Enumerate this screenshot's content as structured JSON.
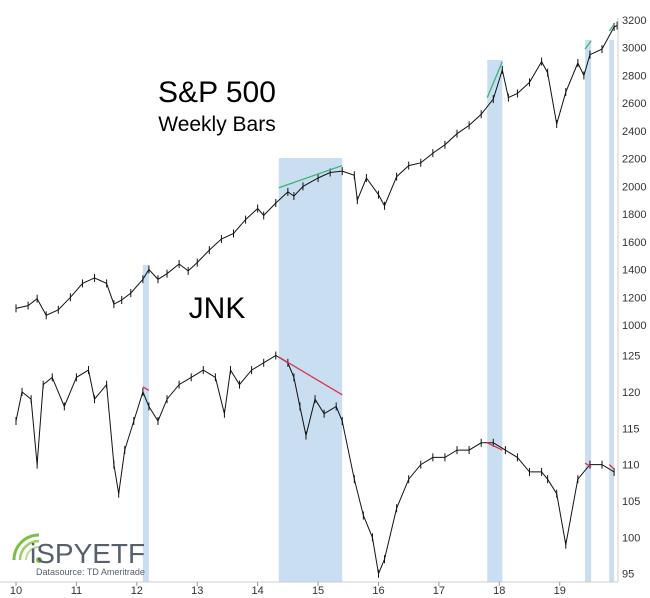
{
  "chart_data": [
    {
      "type": "line",
      "title": "S&P 500",
      "subtitle": "Weekly Bars",
      "x_tick_labels": [
        "10",
        "11",
        "12",
        "13",
        "14",
        "15",
        "16",
        "17",
        "18",
        "19"
      ],
      "y_ticks": [
        1000,
        1200,
        1400,
        1600,
        1800,
        2000,
        2200,
        2400,
        2600,
        2800,
        3000,
        3200
      ],
      "ylim": [
        1000,
        3200
      ],
      "xlim": [
        2010.0,
        2019.95
      ],
      "series": [
        {
          "x": [
            2010.0,
            2010.2,
            2010.35,
            2010.5,
            2010.7,
            2010.9,
            2011.1,
            2011.3,
            2011.5,
            2011.62,
            2011.75,
            2011.9,
            2012.1,
            2012.2,
            2012.35,
            2012.5,
            2012.7,
            2012.85,
            2013.0,
            2013.2,
            2013.4,
            2013.6,
            2013.8,
            2014.0,
            2014.1,
            2014.3,
            2014.5,
            2014.6,
            2014.75,
            2015.0,
            2015.2,
            2015.4,
            2015.6,
            2015.65,
            2015.8,
            2016.0,
            2016.1,
            2016.3,
            2016.5,
            2016.7,
            2016.9,
            2017.1,
            2017.3,
            2017.5,
            2017.7,
            2017.9,
            2018.05,
            2018.15,
            2018.3,
            2018.5,
            2018.7,
            2018.8,
            2018.95,
            2019.1,
            2019.3,
            2019.4,
            2019.5,
            2019.7,
            2019.9,
            2019.95
          ],
          "values": [
            1120,
            1140,
            1190,
            1070,
            1110,
            1200,
            1300,
            1340,
            1300,
            1150,
            1180,
            1230,
            1330,
            1400,
            1330,
            1370,
            1440,
            1390,
            1450,
            1540,
            1620,
            1660,
            1760,
            1840,
            1790,
            1880,
            1960,
            1930,
            2000,
            2060,
            2100,
            2110,
            2080,
            1900,
            2060,
            1940,
            1860,
            2070,
            2150,
            2170,
            2240,
            2300,
            2380,
            2440,
            2520,
            2630,
            2840,
            2640,
            2670,
            2750,
            2900,
            2820,
            2450,
            2680,
            2890,
            2800,
            2950,
            2990,
            3150,
            3160
          ]
        }
      ]
    },
    {
      "type": "line",
      "title": "JNK",
      "y_ticks": [
        95,
        100,
        105,
        110,
        115,
        120,
        125
      ],
      "ylim": [
        94,
        127
      ],
      "xlim": [
        2010.0,
        2019.95
      ],
      "series": [
        {
          "x": [
            2010.0,
            2010.1,
            2010.25,
            2010.35,
            2010.45,
            2010.6,
            2010.8,
            2011.0,
            2011.2,
            2011.3,
            2011.5,
            2011.62,
            2011.7,
            2011.8,
            2011.95,
            2012.1,
            2012.2,
            2012.35,
            2012.5,
            2012.7,
            2012.9,
            2013.1,
            2013.3,
            2013.45,
            2013.55,
            2013.7,
            2013.9,
            2014.1,
            2014.3,
            2014.5,
            2014.6,
            2014.7,
            2014.8,
            2014.95,
            2015.1,
            2015.3,
            2015.4,
            2015.6,
            2015.75,
            2015.9,
            2016.0,
            2016.1,
            2016.3,
            2016.5,
            2016.7,
            2016.9,
            2017.1,
            2017.3,
            2017.5,
            2017.7,
            2017.9,
            2018.1,
            2018.3,
            2018.5,
            2018.7,
            2018.8,
            2018.95,
            2019.1,
            2019.3,
            2019.5,
            2019.7,
            2019.9
          ],
          "values": [
            116,
            120,
            119,
            110,
            121,
            122,
            118,
            122,
            123,
            119,
            121,
            110,
            106,
            112,
            116,
            120,
            118,
            116,
            119,
            121,
            122,
            123,
            122,
            117,
            123,
            121,
            123,
            124,
            125,
            124,
            122,
            118,
            114,
            119,
            117,
            118,
            116,
            108,
            103,
            100,
            95,
            97,
            104,
            108,
            110,
            111,
            111,
            112,
            112,
            113,
            113,
            112,
            111,
            109,
            109,
            108,
            106,
            99,
            108,
            110,
            110,
            109
          ]
        }
      ]
    }
  ],
  "chart": {
    "title": "S&P 500",
    "subtitle": "Weekly Bars",
    "jnk_label": "JNK",
    "logo_text": "iSPYETF",
    "datasource": "Datasource: TD Ameritrade",
    "highlight_periods": [
      [
        2012.1,
        2012.2
      ],
      [
        2014.35,
        2015.4
      ],
      [
        2017.8,
        2018.05
      ],
      [
        2019.42,
        2019.52
      ],
      [
        2019.82,
        2019.9
      ]
    ],
    "highlight_color": "#c9def0",
    "divergence_color_spx": "#3cb371",
    "divergence_color_jnk": "#e0304a",
    "price_line_color": "#111111"
  }
}
